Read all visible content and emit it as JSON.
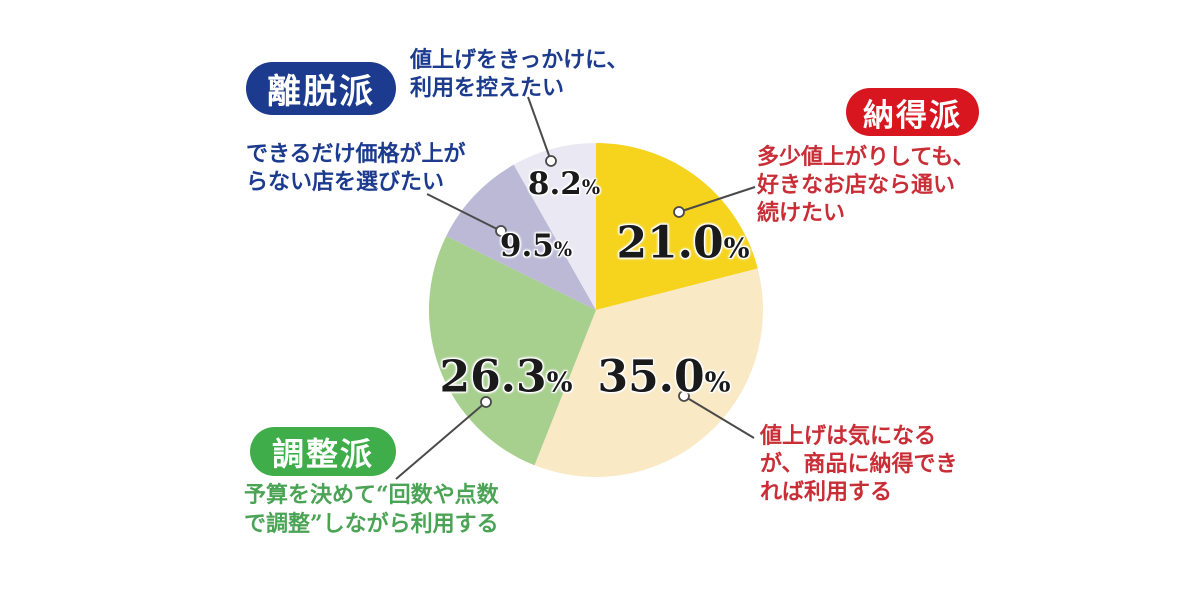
{
  "chart_data": {
    "type": "pie",
    "title": "",
    "unit": "%",
    "start_angle": "12-oclock",
    "direction": "clockwise",
    "total": 100,
    "percent_sign": "%",
    "slices": [
      {
        "group": "納得派",
        "num": "21.0",
        "value": 21.0,
        "color": "#F6D41E",
        "note": "多少値上がりしても、好きなお店なら通い続けたい"
      },
      {
        "group": "納得派",
        "num": "35.0",
        "value": 35.0,
        "color": "#FAE9C5",
        "note": "値上げは気になるが、商品に納得できれば利用する"
      },
      {
        "group": "調整派",
        "num": "26.3",
        "value": 26.3,
        "color": "#A7CF8D",
        "note": "予算を決めて“回数や点数で調整”しながら利用する"
      },
      {
        "group": "離脱派",
        "num": "9.5",
        "value": 9.5,
        "color": "#BCB9D6",
        "note": "できるだけ価格が上がらない店を選びたい"
      },
      {
        "group": "離脱派",
        "num": "8.2",
        "value": 8.2,
        "color": "#EAE8F3",
        "note": "値上げをきっかけに、利用を控えたい"
      }
    ]
  },
  "badges": {
    "ridatsu": {
      "label": "離脱派",
      "bg": "#1C3B8E"
    },
    "nattoku": {
      "label": "納得派",
      "bg": "#D7161F"
    },
    "chousei": {
      "label": "調整派",
      "bg": "#3FAD4A"
    }
  },
  "annotations": {
    "ridatsu_note": {
      "line1": "値上げをきっかけに、",
      "line2": "利用を控えたい"
    },
    "price_note": {
      "line1": "できるだけ価格が上が",
      "line2": "らない店を選びたい"
    },
    "nattoku_note": {
      "line1": "多少値上がりしても、",
      "line2": "好きなお店なら通い",
      "line3": "続けたい"
    },
    "chousei_note": {
      "line1": "予算を決めて“回数や点数",
      "line2": "で調整”しながら利用する"
    },
    "keep_note": {
      "line1": "値上げは気になる",
      "line2": "が、商品に納得でき",
      "line3": "れば利用する"
    }
  },
  "colors": {
    "leader_line": "#4A4A4A",
    "marker_fill": "#FFFFFF",
    "label_text": "#1A1A1A",
    "navy_text": "#1C3B8E",
    "red_text": "#C92E37",
    "green_text": "#4BA455"
  }
}
